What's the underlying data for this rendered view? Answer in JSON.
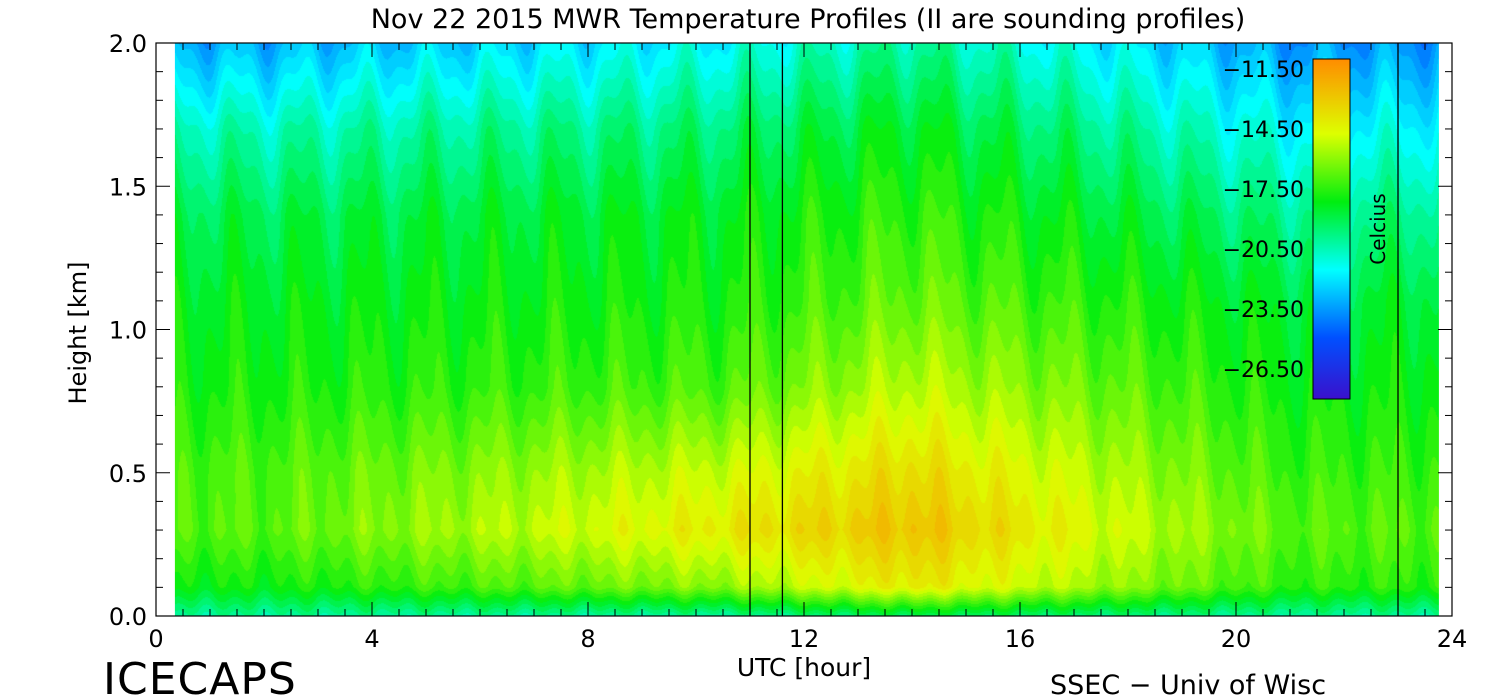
{
  "chart_data": {
    "type": "heatmap",
    "title": "Nov 22 2015 MWR Temperature Profiles (II are sounding profiles)",
    "xlabel": "UTC [hour]",
    "ylabel": "Height [km]",
    "xlim": [
      0,
      24
    ],
    "ylim": [
      0,
      2
    ],
    "x_ticks": [
      0,
      4,
      8,
      12,
      16,
      20,
      24
    ],
    "x_tick_labels": [
      "0",
      "4",
      "8",
      "12",
      "16",
      "20",
      "24"
    ],
    "y_ticks": [
      0,
      0.5,
      1,
      1.5,
      2
    ],
    "y_tick_labels": [
      "0.0",
      "0.5",
      "1.0",
      "1.5",
      "2.0"
    ],
    "data_x_range": [
      0.35,
      23.75
    ],
    "sounding_times": [
      11.0,
      11.6,
      23.0
    ],
    "colorbar": {
      "label": "Celcius",
      "range": [
        -28,
        -11
      ],
      "tick_values": [
        -11.5,
        -14.5,
        -17.5,
        -20.5,
        -23.5,
        -26.5
      ],
      "tick_labels": [
        "−11.50",
        "−14.50",
        "−17.50",
        "−20.50",
        "−23.50",
        "−26.50"
      ]
    },
    "sample_profiles": [
      {
        "hour": 2.0,
        "heights": [
          0.0,
          0.1,
          0.3,
          0.5,
          0.8,
          1.1,
          1.4,
          1.7,
          2.0
        ],
        "temps": [
          -20.0,
          -18.0,
          -16.8,
          -17.0,
          -17.8,
          -18.3,
          -19.0,
          -20.5,
          -23.0
        ]
      },
      {
        "hour": 10.5,
        "heights": [
          0.0,
          0.1,
          0.3,
          0.5,
          0.8,
          1.1,
          1.4,
          1.7,
          2.0
        ],
        "temps": [
          -20.0,
          -16.0,
          -14.0,
          -15.0,
          -17.0,
          -17.8,
          -18.3,
          -19.5,
          -21.5
        ]
      },
      {
        "hour": 14.0,
        "heights": [
          0.0,
          0.1,
          0.3,
          0.5,
          0.8,
          1.1,
          1.4,
          1.7,
          2.0
        ],
        "temps": [
          -19.0,
          -14.0,
          -12.7,
          -13.5,
          -15.2,
          -16.5,
          -17.3,
          -18.3,
          -20.0
        ]
      },
      {
        "hour": 21.0,
        "heights": [
          0.0,
          0.1,
          0.3,
          0.5,
          0.8,
          1.1,
          1.4,
          1.7,
          2.0
        ],
        "temps": [
          -20.0,
          -17.5,
          -16.8,
          -17.3,
          -18.0,
          -18.6,
          -19.8,
          -21.5,
          -23.5
        ]
      }
    ]
  },
  "footer": {
    "left_logo_text": "ICECAPS",
    "right_credit": "SSEC − Univ of Wisc"
  },
  "colors": {
    "palette_low": "#3a0fd0",
    "palette_mid": "#00ff40",
    "palette_high": "#ff9900"
  }
}
